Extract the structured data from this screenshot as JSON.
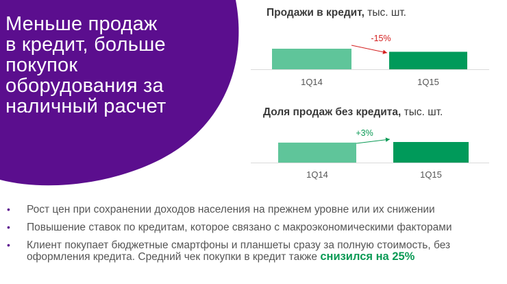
{
  "headline": {
    "lines": [
      "Меньше продаж",
      "в кредит, больше",
      "покупок",
      "оборудования за",
      "наличный расчет"
    ]
  },
  "colors": {
    "purple": "#5b0e8e",
    "bar_light": "#5fc59a",
    "bar_dark": "#009a5a",
    "negative": "#d42020",
    "positive": "#0a9a55",
    "bullet": "#5b0e8e"
  },
  "charts": [
    {
      "title_bold": "Продажи в кредит,",
      "title_rest": " тыс. шт.",
      "change_label": "-15%"
    },
    {
      "title_bold": "Доля продаж без кредита,",
      "title_rest": " тыс. шт.",
      "change_label": "+3%"
    }
  ],
  "chart_data": [
    {
      "type": "bar",
      "title": "Продажи в кредит, тыс. шт.",
      "categories": [
        "1Q14",
        "1Q15"
      ],
      "values": [
        100,
        85
      ],
      "annotation": "-15%"
    },
    {
      "type": "bar",
      "title": "Доля продаж без кредита, тыс. шт.",
      "categories": [
        "1Q14",
        "1Q15"
      ],
      "values": [
        100,
        103
      ],
      "annotation": "+3%"
    }
  ],
  "bullets": [
    {
      "text": "Рост цен при сохранении доходов населения на прежнем уровне или их снижении",
      "highlight": ""
    },
    {
      "text": "Повышение ставок по кредитам, которое связано с макроэкономическими факторами",
      "highlight": ""
    },
    {
      "text": "Клиент покупает бюджетные смартфоны и планшеты сразу за полную стоимость, без оформления кредита. Средний чек покупки в кредит также ",
      "highlight": "снизился на 25%"
    }
  ]
}
